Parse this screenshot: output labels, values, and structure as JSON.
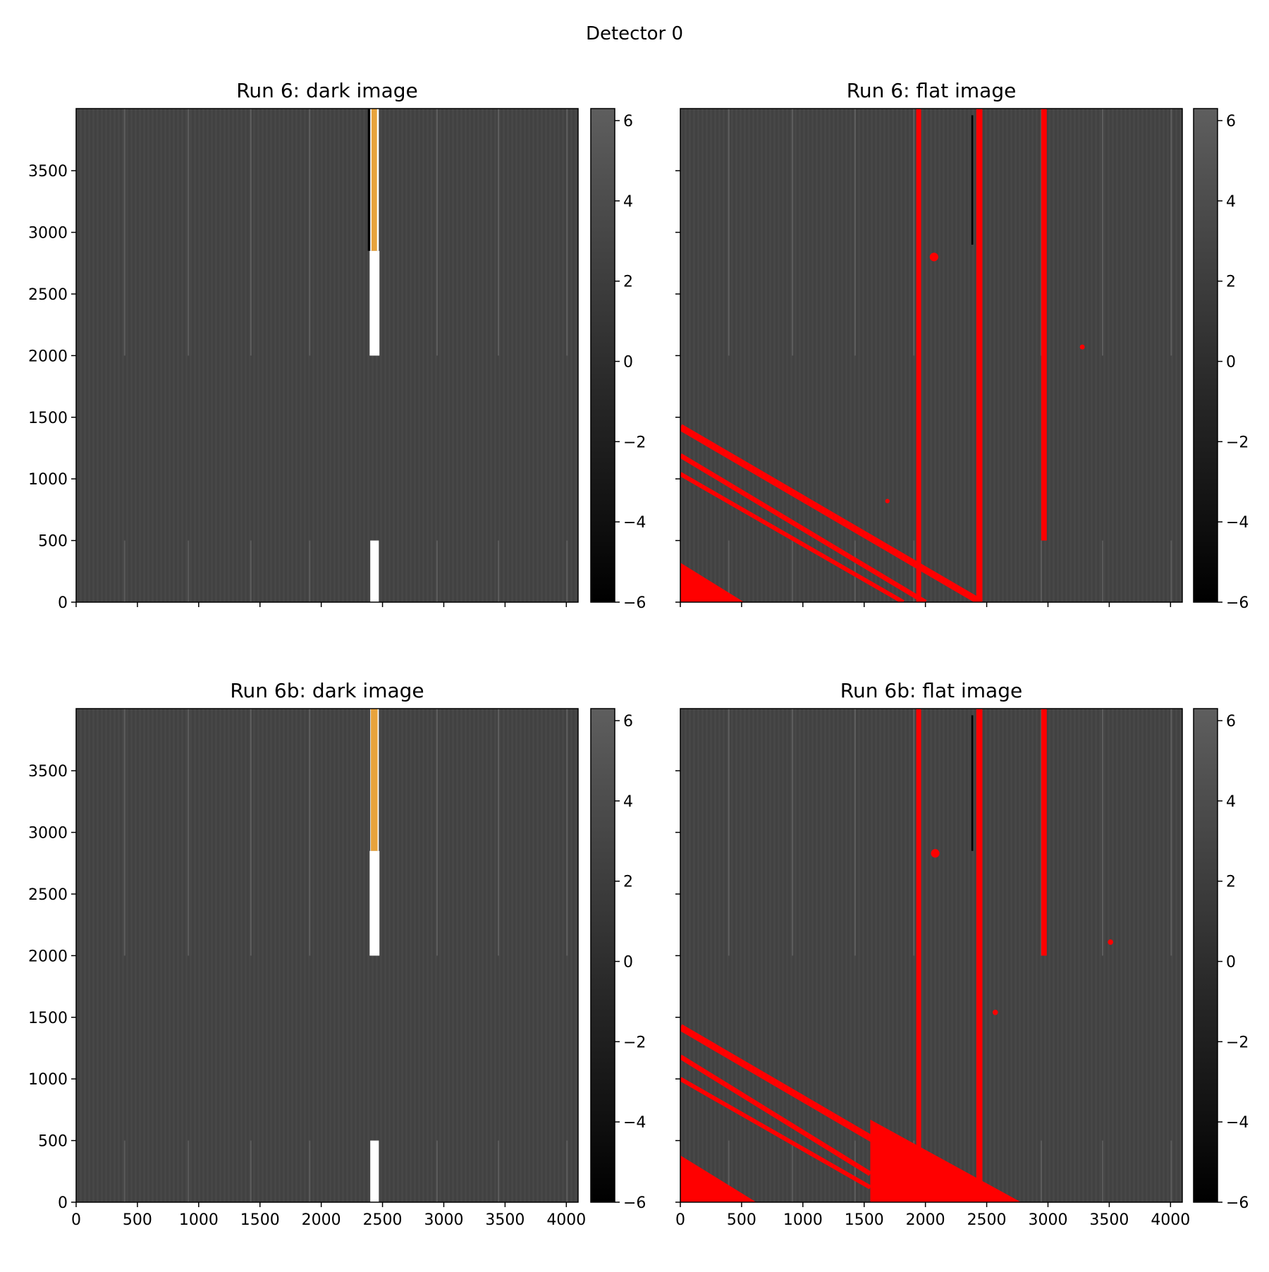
{
  "figure": {
    "suptitle": "Detector 0"
  },
  "chart_data": [
    {
      "type": "heatmap",
      "title": "Run 6: dark image",
      "xlabel": "",
      "ylabel": "",
      "xlim": [
        0,
        4096
      ],
      "ylim": [
        0,
        4004
      ],
      "xticks": [
        0,
        500,
        1000,
        1500,
        2000,
        2500,
        3000,
        3500,
        4000
      ],
      "xtick_labels_shown": false,
      "yticks": [
        0,
        500,
        1000,
        1500,
        2000,
        2500,
        3000,
        3500
      ],
      "ytick_labels_shown": true,
      "colorbar": {
        "cmap": "gray",
        "vmin": -6,
        "vmax": 6.3,
        "ticks": [
          6,
          4,
          2,
          0,
          -2,
          -4,
          -6
        ]
      },
      "background_level": 1.5,
      "features": [
        {
          "kind": "column",
          "x": 2380,
          "width": 20,
          "y0": 2850,
          "y1": 4004,
          "color": "#000000"
        },
        {
          "kind": "column",
          "x": 2395,
          "width": 80,
          "y0": 2000,
          "y1": 2850,
          "color": "#ffffff"
        },
        {
          "kind": "column",
          "x": 2400,
          "width": 70,
          "y0": 2850,
          "y1": 4004,
          "color": "#ffffff"
        },
        {
          "kind": "column",
          "x": 2410,
          "width": 45,
          "y0": 2850,
          "y1": 4004,
          "color": "#e8a33c"
        },
        {
          "kind": "column",
          "x": 2400,
          "width": 70,
          "y0": 0,
          "y1": 500,
          "color": "#ffffff"
        }
      ]
    },
    {
      "type": "heatmap",
      "title": "Run 6: flat image",
      "xlabel": "",
      "ylabel": "",
      "xlim": [
        0,
        4096
      ],
      "ylim": [
        0,
        4004
      ],
      "xticks": [
        0,
        500,
        1000,
        1500,
        2000,
        2500,
        3000,
        3500,
        4000
      ],
      "xtick_labels_shown": false,
      "yticks": [
        0,
        500,
        1000,
        1500,
        2000,
        2500,
        3000,
        3500
      ],
      "ytick_labels_shown": false,
      "colorbar": {
        "cmap": "gray",
        "vmin": -6,
        "vmax": 6.3,
        "ticks": [
          6,
          4,
          2,
          0,
          -2,
          -4,
          -6
        ]
      },
      "background_level": 1.5,
      "features": [
        {
          "kind": "column",
          "x": 1925,
          "width": 40,
          "y0": 0,
          "y1": 4004,
          "color": "#ff0000"
        },
        {
          "kind": "column",
          "x": 2415,
          "width": 50,
          "y0": 0,
          "y1": 4004,
          "color": "#ff0000"
        },
        {
          "kind": "column",
          "x": 2945,
          "width": 45,
          "y0": 500,
          "y1": 4004,
          "color": "#ff0000"
        },
        {
          "kind": "column",
          "x": 2375,
          "width": 15,
          "y0": 2900,
          "y1": 3950,
          "color": "#000000"
        },
        {
          "kind": "dot",
          "x": 2070,
          "y": 2800,
          "r": 35,
          "color": "#ff0000"
        },
        {
          "kind": "dot",
          "x": 3280,
          "y": 2070,
          "r": 20,
          "color": "#ff0000"
        },
        {
          "kind": "dot",
          "x": 1690,
          "y": 820,
          "r": 18,
          "color": "#ff0000"
        },
        {
          "kind": "band",
          "from": [
            0,
            1420
          ],
          "to": [
            2450,
            0
          ],
          "width": 55,
          "color": "#ff0000"
        },
        {
          "kind": "band",
          "from": [
            0,
            1190
          ],
          "to": [
            2000,
            0
          ],
          "width": 40,
          "color": "#ff0000"
        },
        {
          "kind": "band",
          "from": [
            0,
            1040
          ],
          "to": [
            1820,
            0
          ],
          "width": 35,
          "color": "#ff0000"
        },
        {
          "kind": "triangle",
          "points": [
            [
              0,
              320
            ],
            [
              0,
              0
            ],
            [
              520,
              0
            ]
          ],
          "color": "#ff0000"
        }
      ]
    },
    {
      "type": "heatmap",
      "title": "Run 6b: dark image",
      "xlabel": "",
      "ylabel": "",
      "xlim": [
        0,
        4096
      ],
      "ylim": [
        0,
        4004
      ],
      "xticks": [
        0,
        500,
        1000,
        1500,
        2000,
        2500,
        3000,
        3500,
        4000
      ],
      "xtick_labels_shown": true,
      "yticks": [
        0,
        500,
        1000,
        1500,
        2000,
        2500,
        3000,
        3500
      ],
      "ytick_labels_shown": true,
      "colorbar": {
        "cmap": "gray",
        "vmin": -6,
        "vmax": 6.3,
        "ticks": [
          6,
          4,
          2,
          0,
          -2,
          -4,
          -6
        ]
      },
      "background_level": 1.5,
      "features": [
        {
          "kind": "column",
          "x": 2395,
          "width": 80,
          "y0": 2000,
          "y1": 2850,
          "color": "#ffffff"
        },
        {
          "kind": "column",
          "x": 2400,
          "width": 70,
          "y0": 2850,
          "y1": 4004,
          "color": "#ffffff"
        },
        {
          "kind": "column",
          "x": 2405,
          "width": 55,
          "y0": 2850,
          "y1": 4004,
          "color": "#e8a33c"
        },
        {
          "kind": "column",
          "x": 2400,
          "width": 70,
          "y0": 0,
          "y1": 500,
          "color": "#ffffff"
        }
      ]
    },
    {
      "type": "heatmap",
      "title": "Run 6b: flat image",
      "xlabel": "",
      "ylabel": "",
      "xlim": [
        0,
        4096
      ],
      "ylim": [
        0,
        4004
      ],
      "xticks": [
        0,
        500,
        1000,
        1500,
        2000,
        2500,
        3000,
        3500,
        4000
      ],
      "xtick_labels_shown": true,
      "yticks": [
        0,
        500,
        1000,
        1500,
        2000,
        2500,
        3000,
        3500
      ],
      "ytick_labels_shown": false,
      "colorbar": {
        "cmap": "gray",
        "vmin": -6,
        "vmax": 6.3,
        "ticks": [
          6,
          4,
          2,
          0,
          -2,
          -4,
          -6
        ]
      },
      "background_level": 1.5,
      "features": [
        {
          "kind": "column",
          "x": 1925,
          "width": 40,
          "y0": 0,
          "y1": 4004,
          "color": "#ff0000"
        },
        {
          "kind": "column",
          "x": 2415,
          "width": 50,
          "y0": 0,
          "y1": 4004,
          "color": "#ff0000"
        },
        {
          "kind": "column",
          "x": 2945,
          "width": 45,
          "y0": 2000,
          "y1": 4004,
          "color": "#ff0000"
        },
        {
          "kind": "column",
          "x": 2375,
          "width": 15,
          "y0": 2850,
          "y1": 3950,
          "color": "#000000"
        },
        {
          "kind": "dot",
          "x": 2080,
          "y": 2830,
          "r": 35,
          "color": "#ff0000"
        },
        {
          "kind": "dot",
          "x": 3510,
          "y": 2110,
          "r": 22,
          "color": "#ff0000"
        },
        {
          "kind": "dot",
          "x": 2570,
          "y": 1540,
          "r": 22,
          "color": "#ff0000"
        },
        {
          "kind": "band",
          "from": [
            0,
            1420
          ],
          "to": [
            2450,
            0
          ],
          "width": 55,
          "color": "#ff0000"
        },
        {
          "kind": "band",
          "from": [
            0,
            1180
          ],
          "to": [
            1550,
            230
          ],
          "width": 40,
          "color": "#ff0000"
        },
        {
          "kind": "band",
          "from": [
            0,
            1000
          ],
          "to": [
            1550,
            120
          ],
          "width": 35,
          "color": "#ff0000"
        },
        {
          "kind": "polygon",
          "points": [
            [
              1550,
              670
            ],
            [
              2780,
              0
            ],
            [
              1550,
              0
            ]
          ],
          "color": "#ff0000"
        },
        {
          "kind": "triangle",
          "points": [
            [
              0,
              380
            ],
            [
              0,
              0
            ],
            [
              620,
              0
            ]
          ],
          "color": "#ff0000"
        }
      ]
    }
  ]
}
